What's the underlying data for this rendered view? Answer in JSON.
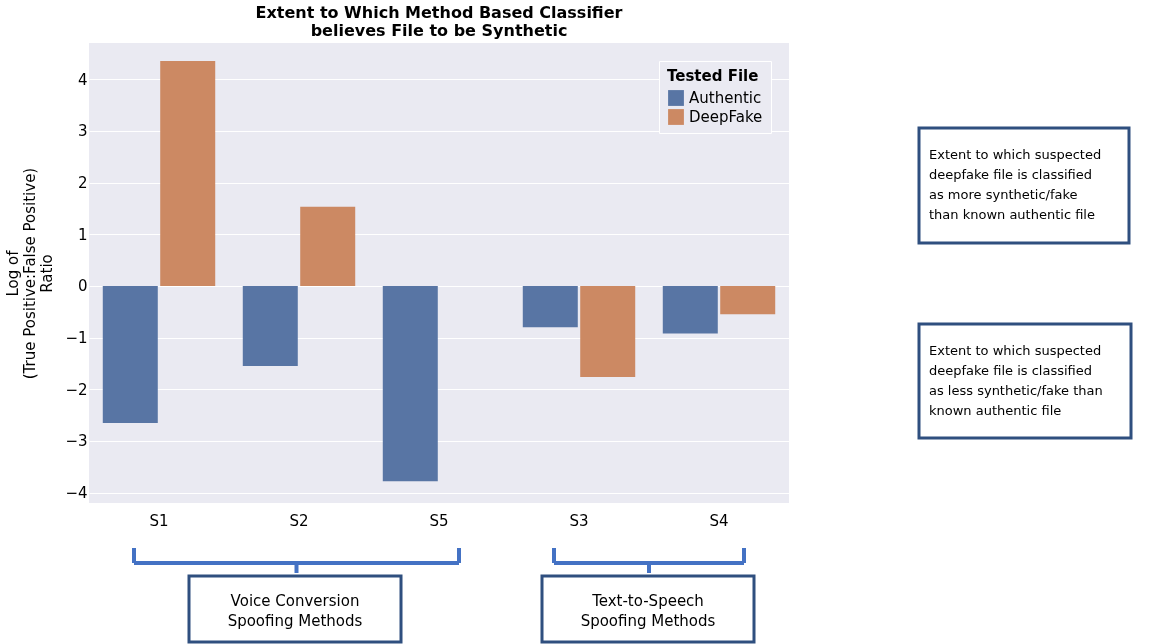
{
  "chart_data": {
    "type": "bar",
    "title": "Extent to Which Method Based Classifier\nbelieves File to be Synthetic",
    "ylabel": "Log of\n(True Positive:False Positive)\nRatio",
    "legend_title": "Tested File",
    "categories": [
      "S1",
      "S2",
      "S5",
      "S3",
      "S4"
    ],
    "series": [
      {
        "name": "Authentic",
        "color": "#5875a4",
        "values": [
          -2.65,
          -1.55,
          -3.78,
          -0.8,
          -0.92
        ]
      },
      {
        "name": "DeepFake",
        "color": "#cc8963",
        "values": [
          4.35,
          1.53,
          0.0,
          -1.76,
          -0.55
        ]
      }
    ],
    "ylim": [
      -4.2,
      4.7
    ],
    "yticks": [
      -4,
      -3,
      -2,
      -1,
      0,
      1,
      2,
      3,
      4
    ],
    "grid": "y",
    "legend": "top right",
    "annotations": [
      "Extent to which suspected\ndeepfake file is classified\nas more synthetic/fake\nthan known authentic file",
      "Extent to which suspected\ndeepfake file is classified\nas less synthetic/fake than\nknown authentic file",
      "Voice Conversion\nSpoofing Methods",
      "Text-to-Speech\nSpoofing Methods"
    ]
  }
}
